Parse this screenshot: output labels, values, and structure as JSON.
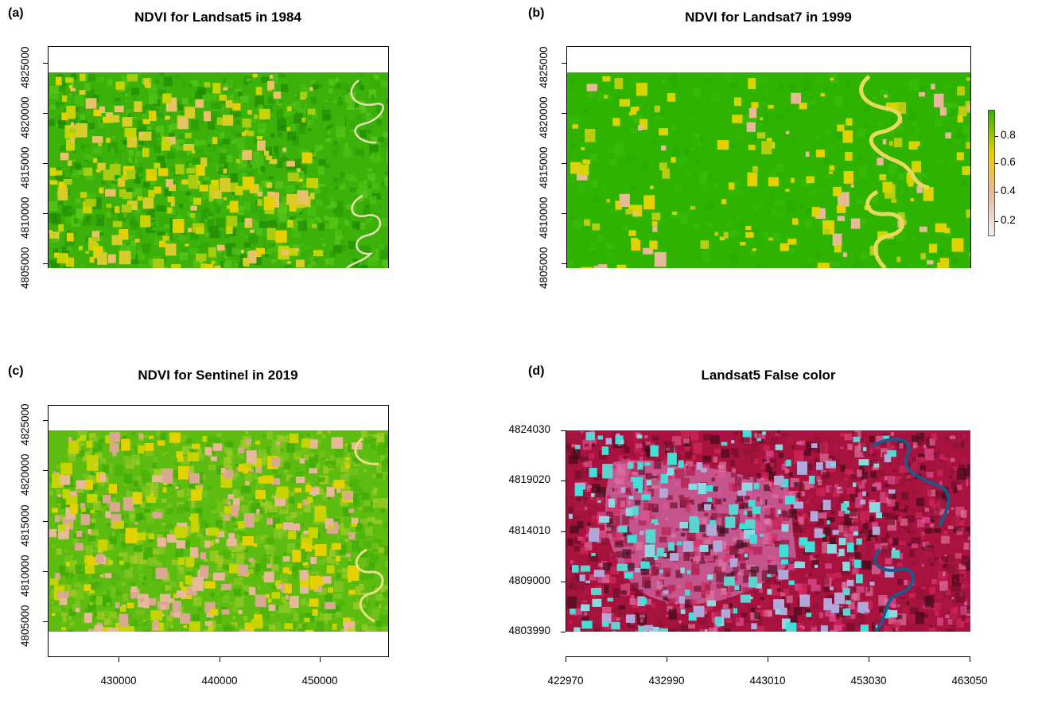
{
  "chart_data": [
    {
      "type": "heatmap",
      "panel": "(a)",
      "title": "NDVI for Landsat5 in 1984",
      "ytick_labels": [
        "4805000",
        "4810000",
        "4815000",
        "4820000",
        "4825000"
      ],
      "colors": {
        "high": "#2db300",
        "mid": "#e6d100",
        "low": "#e8b89a"
      }
    },
    {
      "type": "heatmap",
      "panel": "(b)",
      "title": "NDVI for Landsat7 in 1999",
      "ytick_labels": [
        "4805000",
        "4810000",
        "4815000",
        "4820000",
        "4825000"
      ],
      "legend": {
        "placement": "right",
        "ticks": [
          "0.2",
          "0.4",
          "0.6",
          "0.8"
        ],
        "colors": [
          "#f2f2f2",
          "#e8b89a",
          "#e6d100",
          "#2db300"
        ]
      }
    },
    {
      "type": "heatmap",
      "panel": "(c)",
      "title": "NDVI for Sentinel in 2019",
      "ytick_labels": [
        "4805000",
        "4810000",
        "4815000",
        "4820000",
        "4825000"
      ],
      "xtick_labels": [
        "430000",
        "440000",
        "450000"
      ],
      "x": [
        430000,
        440000,
        450000
      ]
    },
    {
      "type": "heatmap",
      "panel": "(d)",
      "title": "Landsat5 False color",
      "ytick_labels": [
        "4803990",
        "4809000",
        "4814010",
        "4819020",
        "4824030"
      ],
      "xtick_labels": [
        "422970",
        "432990",
        "443010",
        "453030",
        "463050"
      ],
      "xlim": [
        422970,
        463050
      ],
      "ylim": [
        4803990,
        4824030
      ],
      "colors": {
        "red": "#c0124a",
        "pink": "#d46a9a",
        "cyan": "#3fe0d8",
        "dark": "#3a0a18"
      }
    }
  ]
}
